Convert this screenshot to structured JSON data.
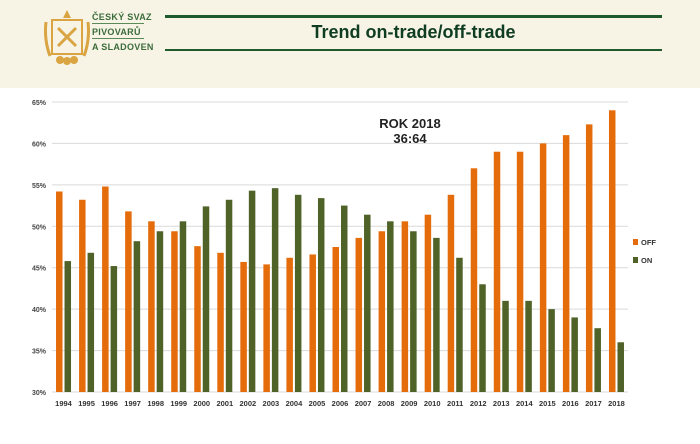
{
  "header": {
    "org_lines": [
      "ČESKÝ SVAZ",
      "PIVOVARŮ",
      "A SLADOVEN"
    ],
    "title": "Trend on-trade/off-trade"
  },
  "annotation": {
    "line1": "ROK 2018",
    "line2": "36:64"
  },
  "colors": {
    "off": "#e46c0a",
    "on": "#4f6228",
    "background": "#f7f4e6",
    "title": "#0f3d22"
  },
  "chart_data": {
    "type": "bar",
    "categories": [
      "1994",
      "1995",
      "1996",
      "1997",
      "1998",
      "1999",
      "2000",
      "2001",
      "2002",
      "2003",
      "2004",
      "2005",
      "2006",
      "2007",
      "2008",
      "2009",
      "2010",
      "2011",
      "2012",
      "2013",
      "2014",
      "2015",
      "2016",
      "2017",
      "2018"
    ],
    "series": [
      {
        "name": "OFF",
        "values": [
          54.2,
          53.2,
          54.8,
          51.8,
          50.6,
          49.4,
          47.6,
          46.8,
          45.7,
          45.4,
          46.2,
          46.6,
          47.5,
          48.6,
          49.4,
          50.6,
          51.4,
          53.8,
          57.0,
          59.0,
          59.0,
          60.0,
          61.0,
          62.3,
          64.0
        ]
      },
      {
        "name": "ON",
        "values": [
          45.8,
          46.8,
          45.2,
          48.2,
          49.4,
          50.6,
          52.4,
          53.2,
          54.3,
          54.6,
          53.8,
          53.4,
          52.5,
          51.4,
          50.6,
          49.4,
          48.6,
          46.2,
          43.0,
          41.0,
          41.0,
          40.0,
          39.0,
          37.7,
          36.0
        ]
      }
    ],
    "ylim": [
      30,
      65
    ],
    "yticks": [
      "30%",
      "35%",
      "40%",
      "45%",
      "50%",
      "55%",
      "60%",
      "65%"
    ],
    "grid": true,
    "legend": "right"
  }
}
